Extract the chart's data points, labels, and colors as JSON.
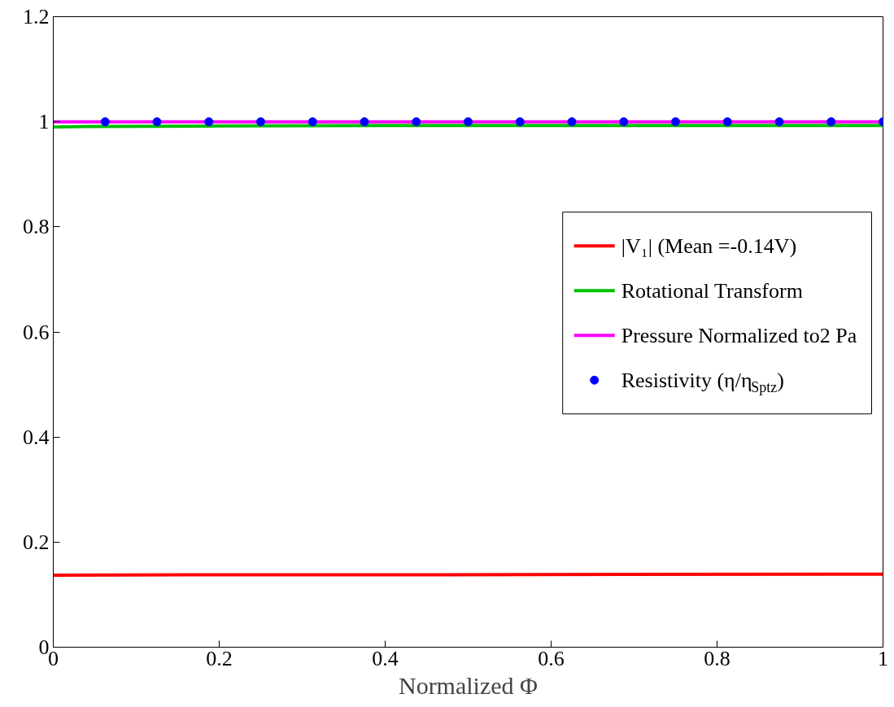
{
  "chart_data": {
    "type": "line",
    "xlabel": "Normalized Φ",
    "xlim": [
      0,
      1
    ],
    "xticks": [
      0,
      0.2,
      0.4,
      0.6,
      0.8,
      1
    ],
    "ylim": [
      0,
      1.2
    ],
    "yticks": [
      0,
      0.2,
      0.4,
      0.6,
      0.8,
      1,
      1.2
    ],
    "grid": false,
    "legend": "right",
    "series": [
      {
        "name": "|V₁| (Mean =-0.14V)",
        "color": "#ff0000",
        "x": [
          0,
          0.16,
          0.47,
          1
        ],
        "values": [
          0.137,
          0.138,
          0.138,
          0.139
        ]
      },
      {
        "name": "Rotational Transform",
        "color": "#00bf00",
        "x": [
          0,
          0.04,
          0.2,
          0.4,
          1
        ],
        "values": [
          0.99,
          0.991,
          0.992,
          0.993,
          0.993
        ]
      },
      {
        "name": "Pressure Normalized to2 Pa",
        "color": "#ff00ff",
        "x": [
          0,
          1
        ],
        "values": [
          1.0,
          1.0
        ]
      },
      {
        "name": "Resistivity (η/η$_{Sptz}$)",
        "color": "#0000ff",
        "type": "scatter",
        "marker": "circle",
        "x": [
          0.0625,
          0.125,
          0.1875,
          0.25,
          0.3125,
          0.375,
          0.4375,
          0.5,
          0.5625,
          0.625,
          0.6875,
          0.75,
          0.8125,
          0.875,
          0.9375,
          1.0
        ],
        "values": [
          1,
          1,
          1,
          1,
          1,
          1,
          1,
          1,
          1,
          1,
          1,
          1,
          1,
          1,
          1,
          1
        ]
      }
    ]
  }
}
